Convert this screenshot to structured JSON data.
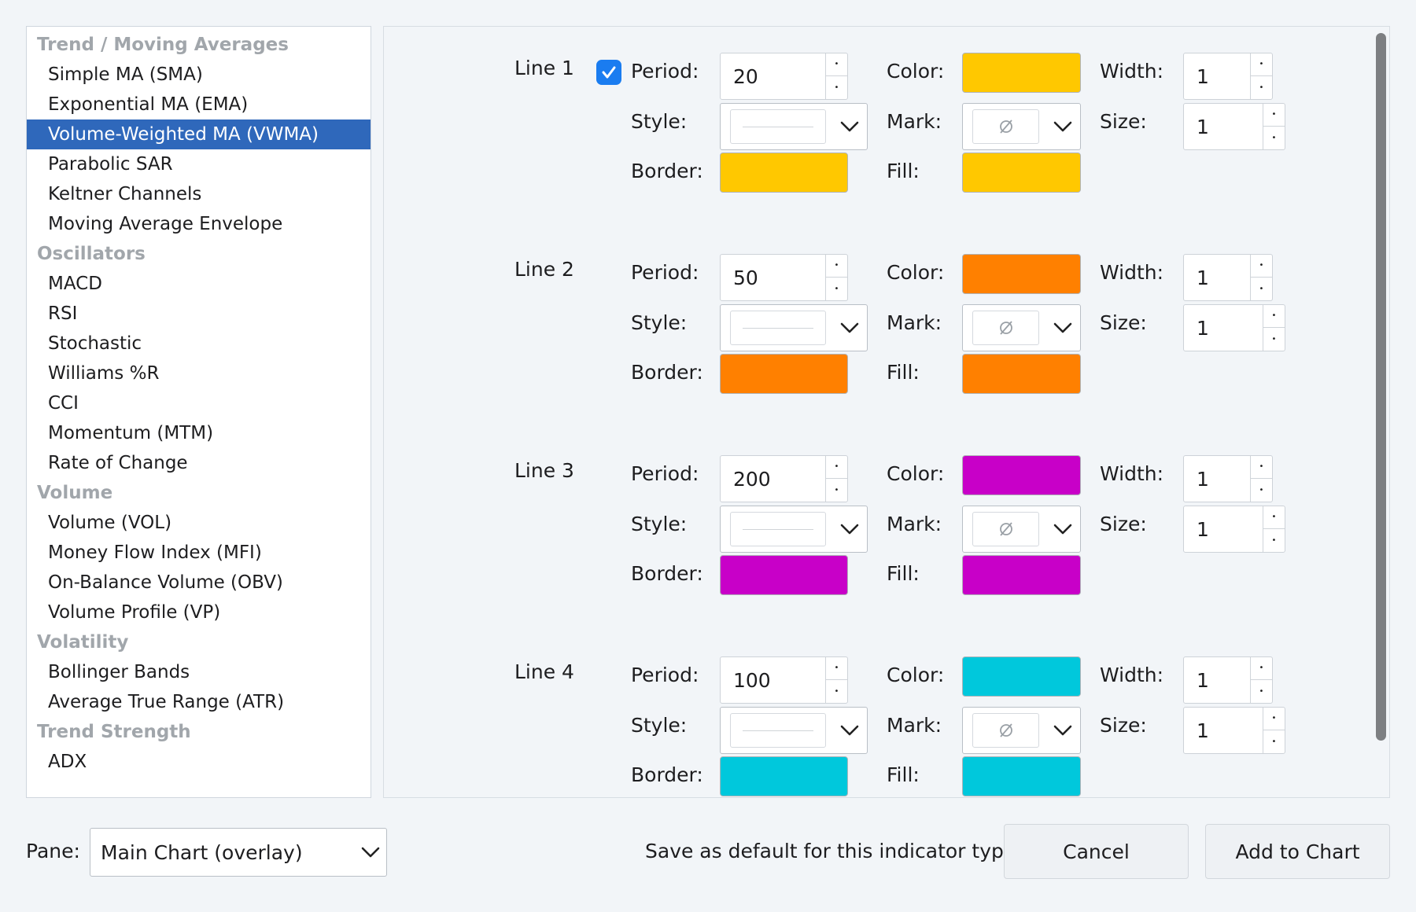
{
  "sidebar": {
    "groups": [
      {
        "title": "Trend / Moving Averages",
        "items": [
          "Simple MA (SMA)",
          "Exponential MA (EMA)",
          "Volume-Weighted MA (VWMA)",
          "Parabolic SAR",
          "Keltner Channels",
          "Moving Average Envelope"
        ]
      },
      {
        "title": "Oscillators",
        "items": [
          "MACD",
          "RSI",
          "Stochastic",
          "Williams %R",
          "CCI",
          "Momentum (MTM)",
          "Rate of Change"
        ]
      },
      {
        "title": "Volume",
        "items": [
          "Volume (VOL)",
          "Money Flow Index (MFI)",
          "On-Balance Volume (OBV)",
          "Volume Profile (VP)"
        ]
      },
      {
        "title": "Volatility",
        "items": [
          "Bollinger Bands",
          "Average True Range (ATR)"
        ]
      },
      {
        "title": "Trend Strength",
        "items": [
          "ADX"
        ]
      }
    ],
    "selected": "Volume-Weighted MA (VWMA)"
  },
  "labels": {
    "period": "Period:",
    "color": "Color:",
    "width": "Width:",
    "style": "Style:",
    "mark": "Mark:",
    "size": "Size:",
    "border": "Border:",
    "fill": "Fill:"
  },
  "lines": [
    {
      "title": "Line 1",
      "checked": true,
      "period": "20",
      "width": "1",
      "size": "1",
      "color": "#ffc800",
      "border_color": "#ffc800",
      "fill_color": "#ffc800"
    },
    {
      "title": "Line 2",
      "checked": false,
      "period": "50",
      "width": "1",
      "size": "1",
      "color": "#ff8000",
      "border_color": "#ff8000",
      "fill_color": "#ff8000"
    },
    {
      "title": "Line 3",
      "checked": false,
      "period": "200",
      "width": "1",
      "size": "1",
      "color": "#c800c8",
      "border_color": "#c800c8",
      "fill_color": "#c800c8"
    },
    {
      "title": "Line 4",
      "checked": false,
      "period": "100",
      "width": "1",
      "size": "1",
      "color": "#00c8dc",
      "border_color": "#00c8dc",
      "fill_color": "#00c8dc"
    }
  ],
  "footer": {
    "pane_label": "Pane:",
    "pane_value": "Main Chart (overlay)",
    "save_default": "Save as default for this indicator type",
    "cancel": "Cancel",
    "add": "Add to Chart"
  }
}
